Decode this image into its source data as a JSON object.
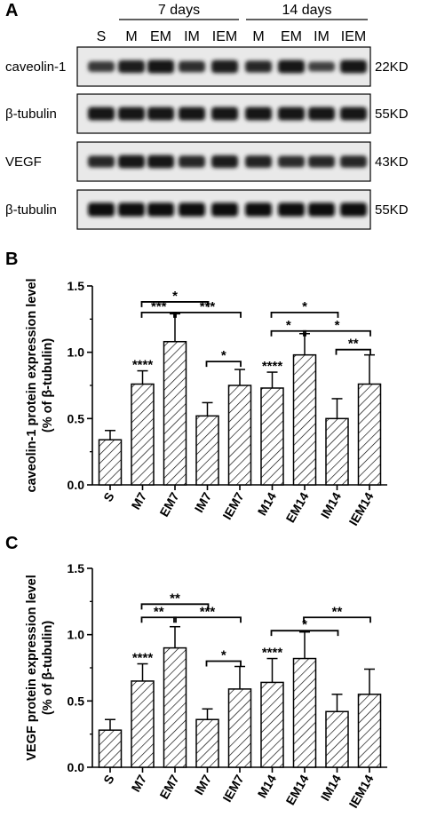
{
  "panel_a": {
    "label": "A",
    "groups": [
      {
        "label": "7 days",
        "from": 1,
        "to": 4
      },
      {
        "label": "14 days",
        "from": 5,
        "to": 8
      }
    ],
    "lanes": [
      "S",
      "M",
      "EM",
      "IM",
      "IEM",
      "M",
      "EM",
      "IM",
      "IEM"
    ],
    "blots": [
      {
        "label": "caveolin-1",
        "kd": "22KD",
        "intensity": [
          0.55,
          0.8,
          0.9,
          0.65,
          0.82,
          0.7,
          0.85,
          0.45,
          0.85
        ]
      },
      {
        "label": "β-tubulin",
        "kd": "55KD",
        "intensity": [
          0.9,
          0.9,
          0.9,
          0.9,
          0.9,
          0.9,
          0.9,
          0.88,
          0.88
        ]
      },
      {
        "label": "VEGF",
        "kd": "43KD",
        "intensity": [
          0.7,
          0.85,
          0.85,
          0.72,
          0.8,
          0.75,
          0.68,
          0.7,
          0.72
        ]
      },
      {
        "label": "β-tubulin",
        "kd": "55KD",
        "intensity": [
          0.95,
          0.95,
          0.95,
          0.95,
          0.95,
          0.95,
          0.95,
          0.95,
          0.95
        ]
      }
    ]
  },
  "chart_data": [
    {
      "panel": "B",
      "type": "bar",
      "categories": [
        "S",
        "M7",
        "EM7",
        "IM7",
        "IEM7",
        "M14",
        "EM14",
        "IM14",
        "IEM14"
      ],
      "values": [
        0.34,
        0.76,
        1.08,
        0.52,
        0.75,
        0.73,
        0.98,
        0.5,
        0.76
      ],
      "errors": [
        0.07,
        0.1,
        0.21,
        0.1,
        0.12,
        0.12,
        0.16,
        0.15,
        0.22
      ],
      "annotations": [
        "",
        "****",
        "",
        "",
        "",
        "****",
        "",
        "",
        ""
      ],
      "brackets": [
        {
          "from": 1,
          "to": 3,
          "y": 1.38,
          "label": "*"
        },
        {
          "from": 1,
          "to": 2,
          "y": 1.3,
          "label": "***"
        },
        {
          "from": 2,
          "to": 4,
          "y": 1.3,
          "label": "***"
        },
        {
          "from": 3,
          "to": 4,
          "y": 0.93,
          "label": "*"
        },
        {
          "from": 5,
          "to": 7,
          "y": 1.3,
          "label": "*"
        },
        {
          "from": 5,
          "to": 6,
          "y": 1.16,
          "label": "*"
        },
        {
          "from": 6,
          "to": 8,
          "y": 1.16,
          "label": "*"
        },
        {
          "from": 7,
          "to": 8,
          "y": 1.02,
          "label": "**"
        }
      ],
      "ylabel_lines": [
        "caveolin-1 protein expression level",
        "(% of β-tubulin)"
      ],
      "ylim": [
        0,
        1.5
      ],
      "yticks": [
        "0.0",
        "0.5",
        "1.0",
        "1.5"
      ]
    },
    {
      "panel": "C",
      "type": "bar",
      "categories": [
        "S",
        "M7",
        "EM7",
        "IM7",
        "IEM7",
        "M14",
        "EM14",
        "IM14",
        "IEM14"
      ],
      "values": [
        0.28,
        0.65,
        0.9,
        0.36,
        0.59,
        0.64,
        0.82,
        0.42,
        0.55
      ],
      "errors": [
        0.08,
        0.13,
        0.16,
        0.08,
        0.17,
        0.18,
        0.2,
        0.13,
        0.19
      ],
      "annotations": [
        "",
        "****",
        "",
        "",
        "",
        "****",
        "",
        "",
        ""
      ],
      "brackets": [
        {
          "from": 1,
          "to": 3,
          "y": 1.23,
          "label": "**"
        },
        {
          "from": 1,
          "to": 2,
          "y": 1.13,
          "label": "**"
        },
        {
          "from": 2,
          "to": 4,
          "y": 1.13,
          "label": "***"
        },
        {
          "from": 3,
          "to": 4,
          "y": 0.8,
          "label": "*"
        },
        {
          "from": 5,
          "to": 7,
          "y": 1.03,
          "label": "*"
        },
        {
          "from": 6,
          "to": 8,
          "y": 1.13,
          "label": "**"
        }
      ],
      "ylabel_lines": [
        "VEGF protein expression level",
        "(% of β-tubulin)"
      ],
      "ylim": [
        0,
        1.5
      ],
      "yticks": [
        "0.0",
        "0.5",
        "1.0",
        "1.5"
      ]
    }
  ]
}
